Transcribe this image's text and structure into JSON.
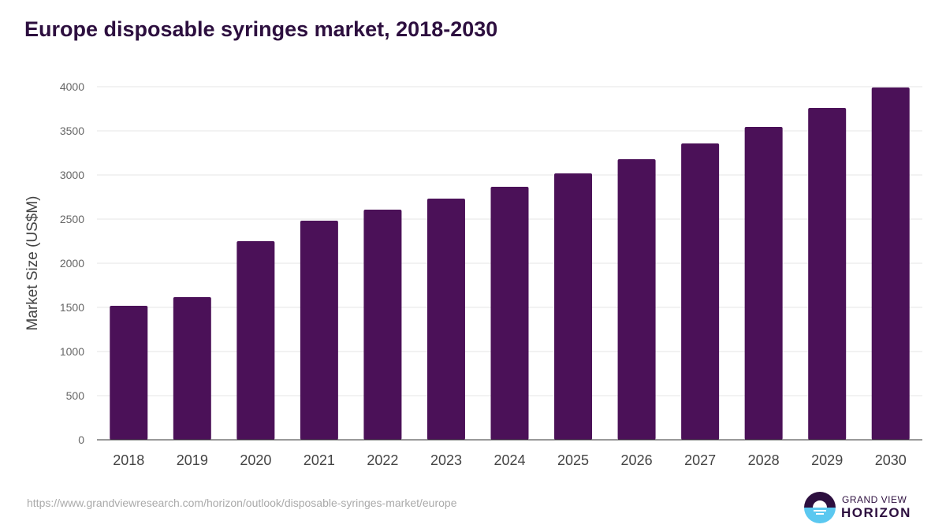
{
  "chart_data": {
    "type": "bar",
    "title": "Europe disposable syringes market, 2018-2030",
    "xlabel": "",
    "ylabel": "Market Size (US$M)",
    "categories": [
      "2018",
      "2019",
      "2020",
      "2021",
      "2022",
      "2023",
      "2024",
      "2025",
      "2026",
      "2027",
      "2028",
      "2029",
      "2030"
    ],
    "values": [
      1518,
      1616,
      2250,
      2482,
      2607,
      2732,
      2866,
      3018,
      3179,
      3357,
      3545,
      3759,
      3991
    ],
    "ylim": [
      0,
      4000
    ],
    "yticks": [
      0,
      500,
      1000,
      1500,
      2000,
      2500,
      3000,
      3500,
      4000
    ],
    "grid": true,
    "bar_color": "#4b1158"
  },
  "footer": {
    "source_url": "https://www.grandviewresearch.com/horizon/outlook/disposable-syringes-market/europe",
    "logo_line1": "GRAND VIEW",
    "logo_line2": "HORIZON"
  }
}
